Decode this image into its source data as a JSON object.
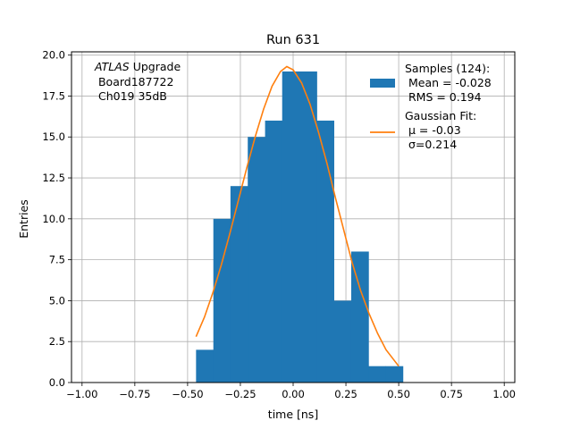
{
  "chart_data": {
    "type": "bar",
    "title": "Run 631",
    "xlabel": "time [ns]",
    "ylabel": "Entries",
    "xlim": [
      -1.05,
      1.05
    ],
    "ylim": [
      0,
      20.2
    ],
    "grid": true,
    "xticks": [
      -1.0,
      -0.75,
      -0.5,
      -0.25,
      0.0,
      0.25,
      0.5,
      0.75,
      1.0
    ],
    "xtick_labels": [
      "−1.00",
      "−0.75",
      "−0.50",
      "−0.25",
      "0.00",
      "0.25",
      "0.50",
      "0.75",
      "1.00"
    ],
    "yticks": [
      0,
      2.5,
      5,
      7.5,
      10,
      12.5,
      15,
      17.5,
      20
    ],
    "ytick_labels": [
      "0.0",
      "2.5",
      "5.0",
      "7.5",
      "10.0",
      "12.5",
      "15.0",
      "17.5",
      "20.0"
    ],
    "histogram": {
      "name": "Samples (124):",
      "color": "#1f77b4",
      "bin_edges": [
        -0.46,
        -0.378,
        -0.297,
        -0.215,
        -0.133,
        -0.052,
        0.03,
        0.112,
        0.193,
        0.275,
        0.357,
        0.438,
        0.52
      ],
      "counts": [
        2,
        10,
        12,
        15,
        16,
        19,
        19,
        16,
        5,
        8,
        1,
        1
      ]
    },
    "fit": {
      "name": "Gaussian Fit:",
      "color": "#ff7f0e",
      "x": [
        -0.46,
        -0.42,
        -0.38,
        -0.34,
        -0.3,
        -0.26,
        -0.22,
        -0.18,
        -0.14,
        -0.1,
        -0.06,
        -0.03,
        0.0,
        0.04,
        0.08,
        0.12,
        0.16,
        0.2,
        0.24,
        0.28,
        0.32,
        0.36,
        0.4,
        0.44,
        0.5
      ],
      "y": [
        2.8,
        4.0,
        5.5,
        7.2,
        9.1,
        11.1,
        13.1,
        15.0,
        16.7,
        18.1,
        19.0,
        19.3,
        19.1,
        18.3,
        17.0,
        15.3,
        13.4,
        11.3,
        9.3,
        7.3,
        5.6,
        4.2,
        3.0,
        2.0,
        1.0
      ]
    },
    "legend": {
      "placement": "top-right",
      "samples_lines": [
        "Samples (124):",
        " Mean = -0.028",
        " RMS = 0.194"
      ],
      "fit_lines": [
        "Gaussian Fit:",
        " μ = -0.03",
        " σ=0.214"
      ]
    },
    "annotation": {
      "lines": [
        {
          "italic": "ATLAS",
          "rest": " Upgrade"
        },
        {
          "italic": "",
          "rest": " Board187722"
        },
        {
          "italic": "",
          "rest": " Ch019 35dB"
        }
      ]
    }
  }
}
